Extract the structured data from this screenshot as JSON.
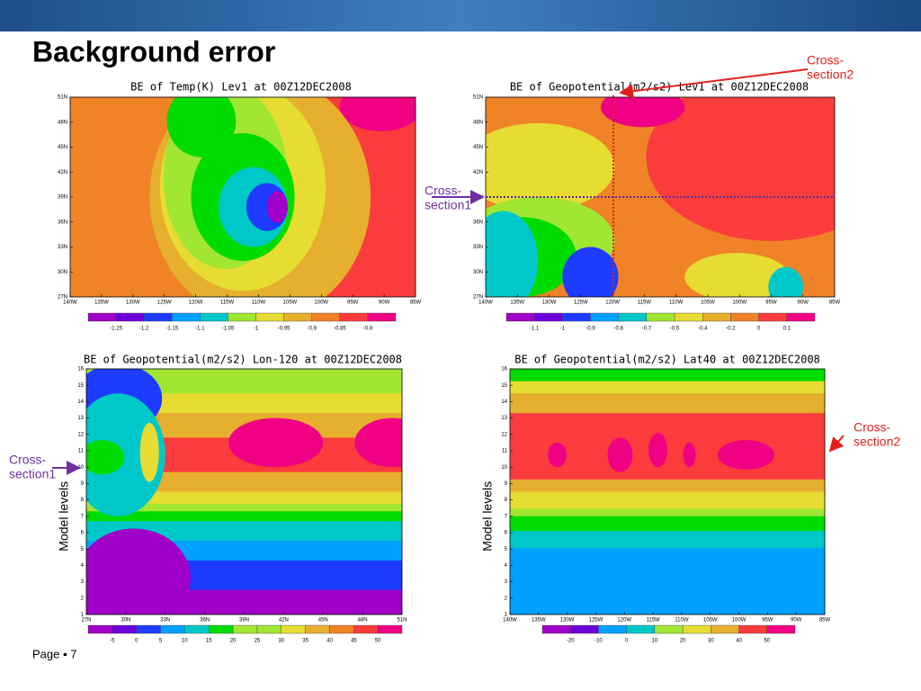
{
  "header": {
    "title": "Background error"
  },
  "panels": [
    {
      "title": "BE of Temp(K) Lev1 at 00Z12DEC2008",
      "x_ticks": [
        "140W",
        "135W",
        "130W",
        "125W",
        "120W",
        "115W",
        "110W",
        "105W",
        "100W",
        "95W",
        "90W",
        "85W"
      ],
      "y_ticks": [
        "27N",
        "30N",
        "33N",
        "36N",
        "39N",
        "42N",
        "45N",
        "48N",
        "51N"
      ],
      "colorbar": [
        "-1.25",
        "-1.2",
        "-1.15",
        "-1.1",
        "-1.05",
        "-1",
        "-0.95",
        "-0.9",
        "-0.85",
        "-0.8"
      ]
    },
    {
      "title": "BE of Geopotential(m2/s2) Lev1 at 00Z12DEC2008",
      "x_ticks": [
        "140W",
        "135W",
        "130W",
        "125W",
        "120W",
        "115W",
        "110W",
        "105W",
        "100W",
        "95W",
        "90W",
        "85W"
      ],
      "y_ticks": [
        "27N",
        "30N",
        "33N",
        "36N",
        "39N",
        "42N",
        "45N",
        "48N",
        "51N"
      ],
      "colorbar": [
        "-1.1",
        "-1",
        "-0.9",
        "-0.8",
        "-0.7",
        "-0.5",
        "-0.4",
        "-0.2",
        "0",
        "0.1"
      ]
    },
    {
      "title": "BE of Geopotential(m2/s2) Lon-120 at 00Z12DEC2008",
      "y_label": "Model levels",
      "x_ticks": [
        "27N",
        "30N",
        "33N",
        "36N",
        "39N",
        "42N",
        "45N",
        "48N",
        "51N"
      ],
      "y_ticks": [
        "1",
        "2",
        "3",
        "4",
        "5",
        "6",
        "7",
        "8",
        "9",
        "10",
        "11",
        "12",
        "13",
        "14",
        "15",
        "16"
      ],
      "colorbar": [
        "-5",
        "0",
        "5",
        "10",
        "15",
        "20",
        "25",
        "30",
        "35",
        "40",
        "45",
        "50"
      ]
    },
    {
      "title": "BE of Geopotential(m2/s2) Lat40 at 00Z12DEC2008",
      "y_label": "Model levels",
      "x_ticks": [
        "140W",
        "135W",
        "130W",
        "125W",
        "120W",
        "115W",
        "110W",
        "105W",
        "100W",
        "95W",
        "90W",
        "85W"
      ],
      "y_ticks": [
        "1",
        "2",
        "3",
        "4",
        "5",
        "6",
        "7",
        "8",
        "9",
        "10",
        "11",
        "12",
        "13",
        "14",
        "15",
        "16"
      ],
      "colorbar": [
        "-20",
        "-10",
        "0",
        "10",
        "20",
        "30",
        "40",
        "50"
      ]
    }
  ],
  "annotations": [
    {
      "lines": [
        "Cross-",
        "section2"
      ]
    },
    {
      "lines": [
        "Cross-",
        "section1"
      ]
    },
    {
      "lines": [
        "Cross-",
        "section1"
      ]
    },
    {
      "lines": [
        "Cross-",
        "section2"
      ]
    }
  ],
  "footer": {
    "page": "Page ▪ 7"
  }
}
